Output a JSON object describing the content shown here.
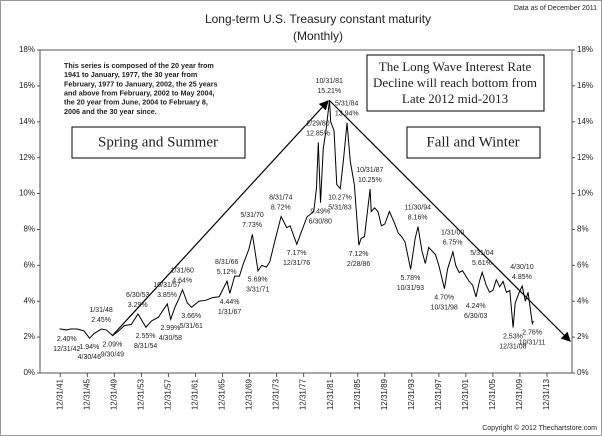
{
  "chart_data": {
    "type": "line",
    "title": "Long-term U.S. Treasury constant maturity",
    "subtitle": "(Monthly)",
    "data_note": "Data as of December 2011",
    "copyright": "Copyright © 2012 Thechartstore.com",
    "series_note": [
      "This series is composed of the 20 year from",
      "1941 to January, 1977, the 30 year from",
      "February, 1977 to January, 2002, the 25 years",
      "and above from February, 2002 to May 2004,",
      "the 20 year from June, 2004 to February 8,",
      "2006 and the 30 year since."
    ],
    "left_box": "Spring and Summer",
    "right_box": "Fall and Winter",
    "forecast_box": [
      "The Long Wave Interest Rate",
      "Decline will reach bottom from",
      "Late 2012 mid-2013"
    ],
    "x": [
      1941.9,
      1942.9,
      1943.5,
      1944.5,
      1945.5,
      1946.33,
      1947.0,
      1948.08,
      1948.8,
      1949.75,
      1950.5,
      1951.5,
      1952.5,
      1953.5,
      1954.67,
      1955.5,
      1956.5,
      1957.83,
      1958.33,
      1959.0,
      1959.5,
      1960.08,
      1960.8,
      1961.42,
      1962.5,
      1963.5,
      1964.5,
      1965.5,
      1966.67,
      1967.08,
      1967.8,
      1968.5,
      1969.0,
      1969.9,
      1970.42,
      1971.25,
      1971.8,
      1972.5,
      1973.0,
      1973.7,
      1974.67,
      1975.5,
      1976.0,
      1976.99,
      1977.5,
      1978.5,
      1979.5,
      1979.9,
      1980.17,
      1980.5,
      1980.9,
      1981.3,
      1981.83,
      1982.0,
      1982.5,
      1982.9,
      1983.42,
      1983.9,
      1984.42,
      1984.9,
      1985.5,
      1986.17,
      1986.5,
      1987.0,
      1987.83,
      1988.0,
      1988.5,
      1989.0,
      1989.5,
      1990.0,
      1990.7,
      1991.5,
      1992.0,
      1992.5,
      1993.0,
      1993.83,
      1994.5,
      1994.92,
      1995.5,
      1996.0,
      1996.5,
      1997.0,
      1997.5,
      1998.0,
      1998.83,
      1999.3,
      2000.08,
      2000.5,
      2001.0,
      2001.5,
      2002.0,
      2002.5,
      2003.0,
      2003.5,
      2004.0,
      2004.42,
      2005.0,
      2005.5,
      2006.0,
      2006.5,
      2007.0,
      2007.5,
      2008.0,
      2008.5,
      2008.99,
      2009.3,
      2009.9,
      2010.33,
      2010.8,
      2011.2,
      2011.83,
      2011.99
    ],
    "series": [
      {
        "color": "#000000",
        "values": [
          2.46,
          2.4,
          2.45,
          2.45,
          2.35,
          1.94,
          2.2,
          2.45,
          2.4,
          2.09,
          2.3,
          2.65,
          2.7,
          3.29,
          2.55,
          2.9,
          3.1,
          3.85,
          2.99,
          3.7,
          4.1,
          4.64,
          3.9,
          3.66,
          4.0,
          4.05,
          4.2,
          4.25,
          5.12,
          4.44,
          5.4,
          5.4,
          6.0,
          6.9,
          7.73,
          5.69,
          6.0,
          5.9,
          6.2,
          7.3,
          8.72,
          8.1,
          8.2,
          7.17,
          7.7,
          8.7,
          9.0,
          10.3,
          12.85,
          9.49,
          12.5,
          13.5,
          15.21,
          14.0,
          13.5,
          10.5,
          10.27,
          11.9,
          13.94,
          11.8,
          10.5,
          7.12,
          7.5,
          7.6,
          10.25,
          9.0,
          9.2,
          9.0,
          8.2,
          8.3,
          9.0,
          8.3,
          7.8,
          7.6,
          7.3,
          5.78,
          7.5,
          8.16,
          6.8,
          6.1,
          7.0,
          6.8,
          6.6,
          6.0,
          4.7,
          5.8,
          6.75,
          6.0,
          5.6,
          5.7,
          5.4,
          5.1,
          4.9,
          4.24,
          5.1,
          5.61,
          4.9,
          4.5,
          4.6,
          5.2,
          4.8,
          5.1,
          4.5,
          4.6,
          2.53,
          3.9,
          4.5,
          4.85,
          4.0,
          4.5,
          2.76,
          2.9
        ]
      }
    ],
    "annotations": [
      {
        "date": "12/31/42",
        "value": 2.4,
        "label": "2.40%"
      },
      {
        "date": "4/30/46",
        "value": 1.94,
        "label": "1.94%"
      },
      {
        "date": "1/31/48",
        "value": 2.45,
        "label": "2.45%"
      },
      {
        "date": "9/30/49",
        "value": 2.09,
        "label": "2.09%"
      },
      {
        "date": "6/30/53",
        "value": 3.29,
        "label": "3.29%"
      },
      {
        "date": "8/31/54",
        "value": 2.55,
        "label": "2.55%"
      },
      {
        "date": "10/31/57",
        "value": 3.85,
        "label": "3.85%"
      },
      {
        "date": "4/30/58",
        "value": 2.99,
        "label": "2.99%"
      },
      {
        "date": "1/31/60",
        "value": 4.64,
        "label": "4.64%"
      },
      {
        "date": "5/31/61",
        "value": 3.66,
        "label": "3.66%"
      },
      {
        "date": "8/31/66",
        "value": 5.12,
        "label": "5.12%"
      },
      {
        "date": "1/31/67",
        "value": 4.44,
        "label": "4.44%"
      },
      {
        "date": "5/31/70",
        "value": 7.73,
        "label": "7.73%"
      },
      {
        "date": "3/31/71",
        "value": 5.69,
        "label": "5.69%"
      },
      {
        "date": "8/31/74",
        "value": 8.72,
        "label": "8.72%"
      },
      {
        "date": "12/31/76",
        "value": 7.17,
        "label": "7.17%"
      },
      {
        "date": "2/29/80",
        "value": 12.85,
        "label": "12.85%"
      },
      {
        "date": "6/30/80",
        "value": 9.49,
        "label": "9.49%"
      },
      {
        "date": "10/31/81",
        "value": 15.21,
        "label": "15.21%"
      },
      {
        "date": "5/31/83",
        "value": 10.27,
        "label": "10.27%"
      },
      {
        "date": "5/31/84",
        "value": 13.94,
        "label": "13.94%"
      },
      {
        "date": "2/28/86",
        "value": 7.12,
        "label": "7.12%"
      },
      {
        "date": "10/31/87",
        "value": 10.25,
        "label": "10.25%"
      },
      {
        "date": "10/31/93",
        "value": 5.78,
        "label": "5.78%"
      },
      {
        "date": "11/30/94",
        "value": 8.16,
        "label": "8.16%"
      },
      {
        "date": "10/31/98",
        "value": 4.7,
        "label": "4.70%"
      },
      {
        "date": "1/31/00",
        "value": 6.75,
        "label": "6.75%"
      },
      {
        "date": "6/30/03",
        "value": 4.24,
        "label": "4.24%"
      },
      {
        "date": "5/31/04",
        "value": 5.61,
        "label": "5.61%"
      },
      {
        "date": "12/31/08",
        "value": 2.53,
        "label": "2.53%"
      },
      {
        "date": "4/30/10",
        "value": 4.85,
        "label": "4.85%"
      },
      {
        "date": "10/31/11",
        "value": 2.76,
        "label": "2.76%"
      }
    ],
    "xlim": [
      1939,
      2017.7
    ],
    "xticks": [
      {
        "value": 1942,
        "label": "12/31/41"
      },
      {
        "value": 1946,
        "label": "12/31/45"
      },
      {
        "value": 1950,
        "label": "12/31/49"
      },
      {
        "value": 1954,
        "label": "12/31/53"
      },
      {
        "value": 1958,
        "label": "12/31/57"
      },
      {
        "value": 1962,
        "label": "12/31/61"
      },
      {
        "value": 1966,
        "label": "12/31/65"
      },
      {
        "value": 1970,
        "label": "12/31/69"
      },
      {
        "value": 1974,
        "label": "12/31/73"
      },
      {
        "value": 1978,
        "label": "12/31/77"
      },
      {
        "value": 1982,
        "label": "12/31/81"
      },
      {
        "value": 1986,
        "label": "12/31/85"
      },
      {
        "value": 1990,
        "label": "12/31/89"
      },
      {
        "value": 1994,
        "label": "12/31/93"
      },
      {
        "value": 1998,
        "label": "12/31/97"
      },
      {
        "value": 2002,
        "label": "12/31/01"
      },
      {
        "value": 2006,
        "label": "12/31/05"
      },
      {
        "value": 2010,
        "label": "12/31/09"
      },
      {
        "value": 2014,
        "label": "12/31/13"
      }
    ],
    "ylim": [
      0,
      18
    ],
    "yticks": [
      {
        "value": 0,
        "label": "0%"
      },
      {
        "value": 2,
        "label": "2%"
      },
      {
        "value": 4,
        "label": "4%"
      },
      {
        "value": 6,
        "label": "6%"
      },
      {
        "value": 8,
        "label": "8%"
      },
      {
        "value": 10,
        "label": "10%"
      },
      {
        "value": 12,
        "label": "12%"
      },
      {
        "value": 14,
        "label": "14%"
      },
      {
        "value": 16,
        "label": "16%"
      },
      {
        "value": 18,
        "label": "18%"
      }
    ],
    "y2lim": [
      0,
      18
    ],
    "y2ticks": [
      {
        "value": 0,
        "label": "0%"
      },
      {
        "value": 2,
        "label": "2%"
      },
      {
        "value": 4,
        "label": "4%"
      },
      {
        "value": 6,
        "label": "6%"
      },
      {
        "value": 8,
        "label": "8%"
      },
      {
        "value": 10,
        "label": "10%"
      },
      {
        "value": 12,
        "label": "12%"
      },
      {
        "value": 14,
        "label": "14%"
      },
      {
        "value": 16,
        "label": "16%"
      },
      {
        "value": 18,
        "label": "18%"
      }
    ]
  }
}
